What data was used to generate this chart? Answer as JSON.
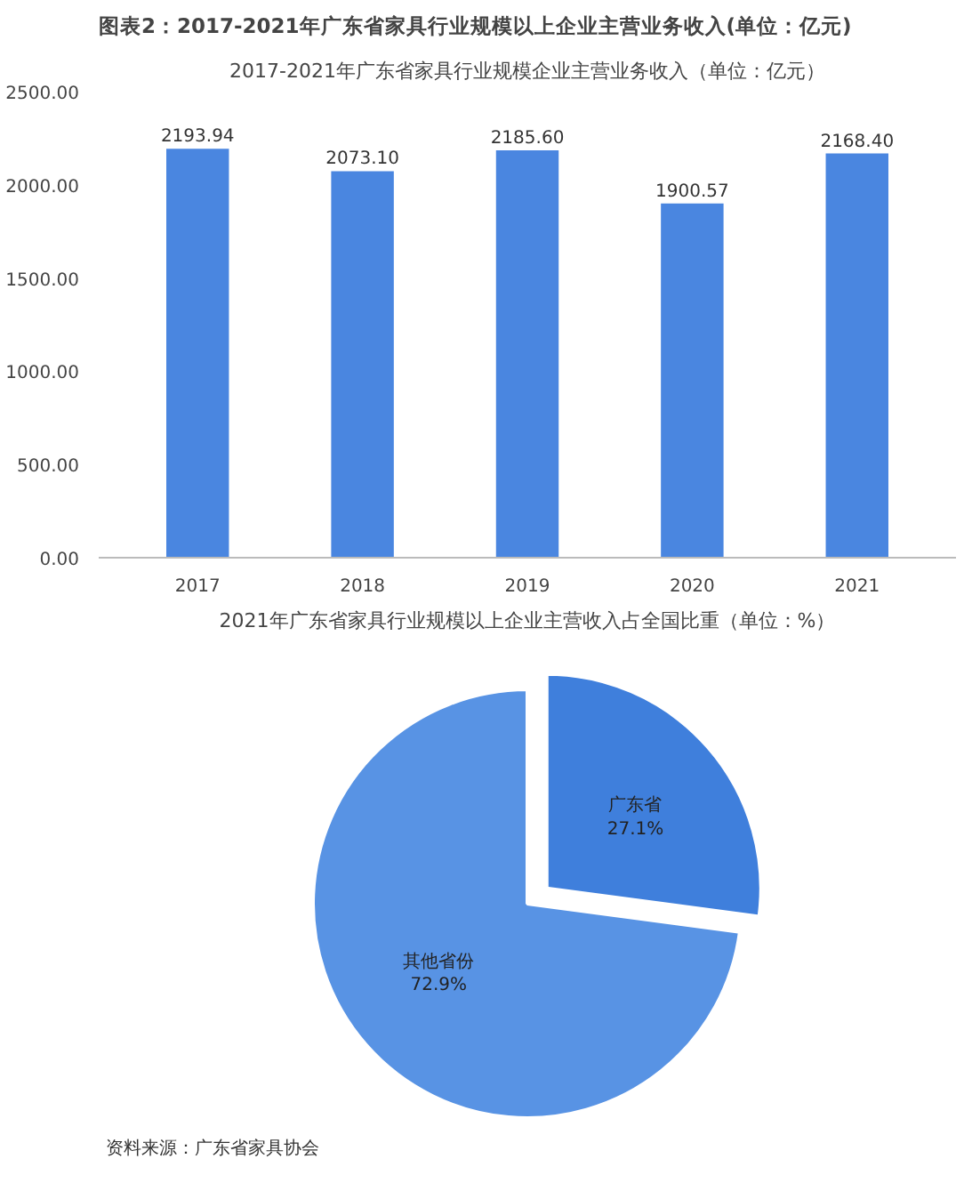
{
  "chart_data": [
    {
      "type": "bar",
      "title": "图表2：2017-2021年广东省家具行业规模以上企业主营业务收入(单位：亿元)",
      "subtitle": "2017-2021年广东省家具行业规模企业主营业务收入（单位：亿元）",
      "categories": [
        "2017",
        "2018",
        "2019",
        "2020",
        "2021"
      ],
      "values": [
        2193.94,
        2073.1,
        2185.6,
        1900.57,
        2168.4
      ],
      "value_labels": [
        "2193.94",
        "2073.10",
        "2185.60",
        "1900.57",
        "2168.40"
      ],
      "color": "#4a86e0",
      "ylim": [
        0,
        2500
      ],
      "yticks": [
        {
          "value": 0,
          "label": "0.00"
        },
        {
          "value": 500,
          "label": "500.00"
        },
        {
          "value": 1000,
          "label": "1000.00"
        },
        {
          "value": 1500,
          "label": "1500.00"
        },
        {
          "value": 2000,
          "label": "2000.00"
        },
        {
          "value": 2500,
          "label": "2500.00"
        }
      ],
      "grid": false
    },
    {
      "type": "pie",
      "title": "2021年广东省家具行业规模以上企业主营收入占全国比重（单位：%）",
      "categories": [
        "广东省",
        "其他省份"
      ],
      "values": [
        27.1,
        72.9
      ],
      "colors": [
        "#3f7fdc",
        "#5893e4"
      ],
      "value_labels": [
        "27.1%",
        "72.9%"
      ],
      "annotations": [
        "资料来源：广东省家具协会"
      ]
    }
  ]
}
